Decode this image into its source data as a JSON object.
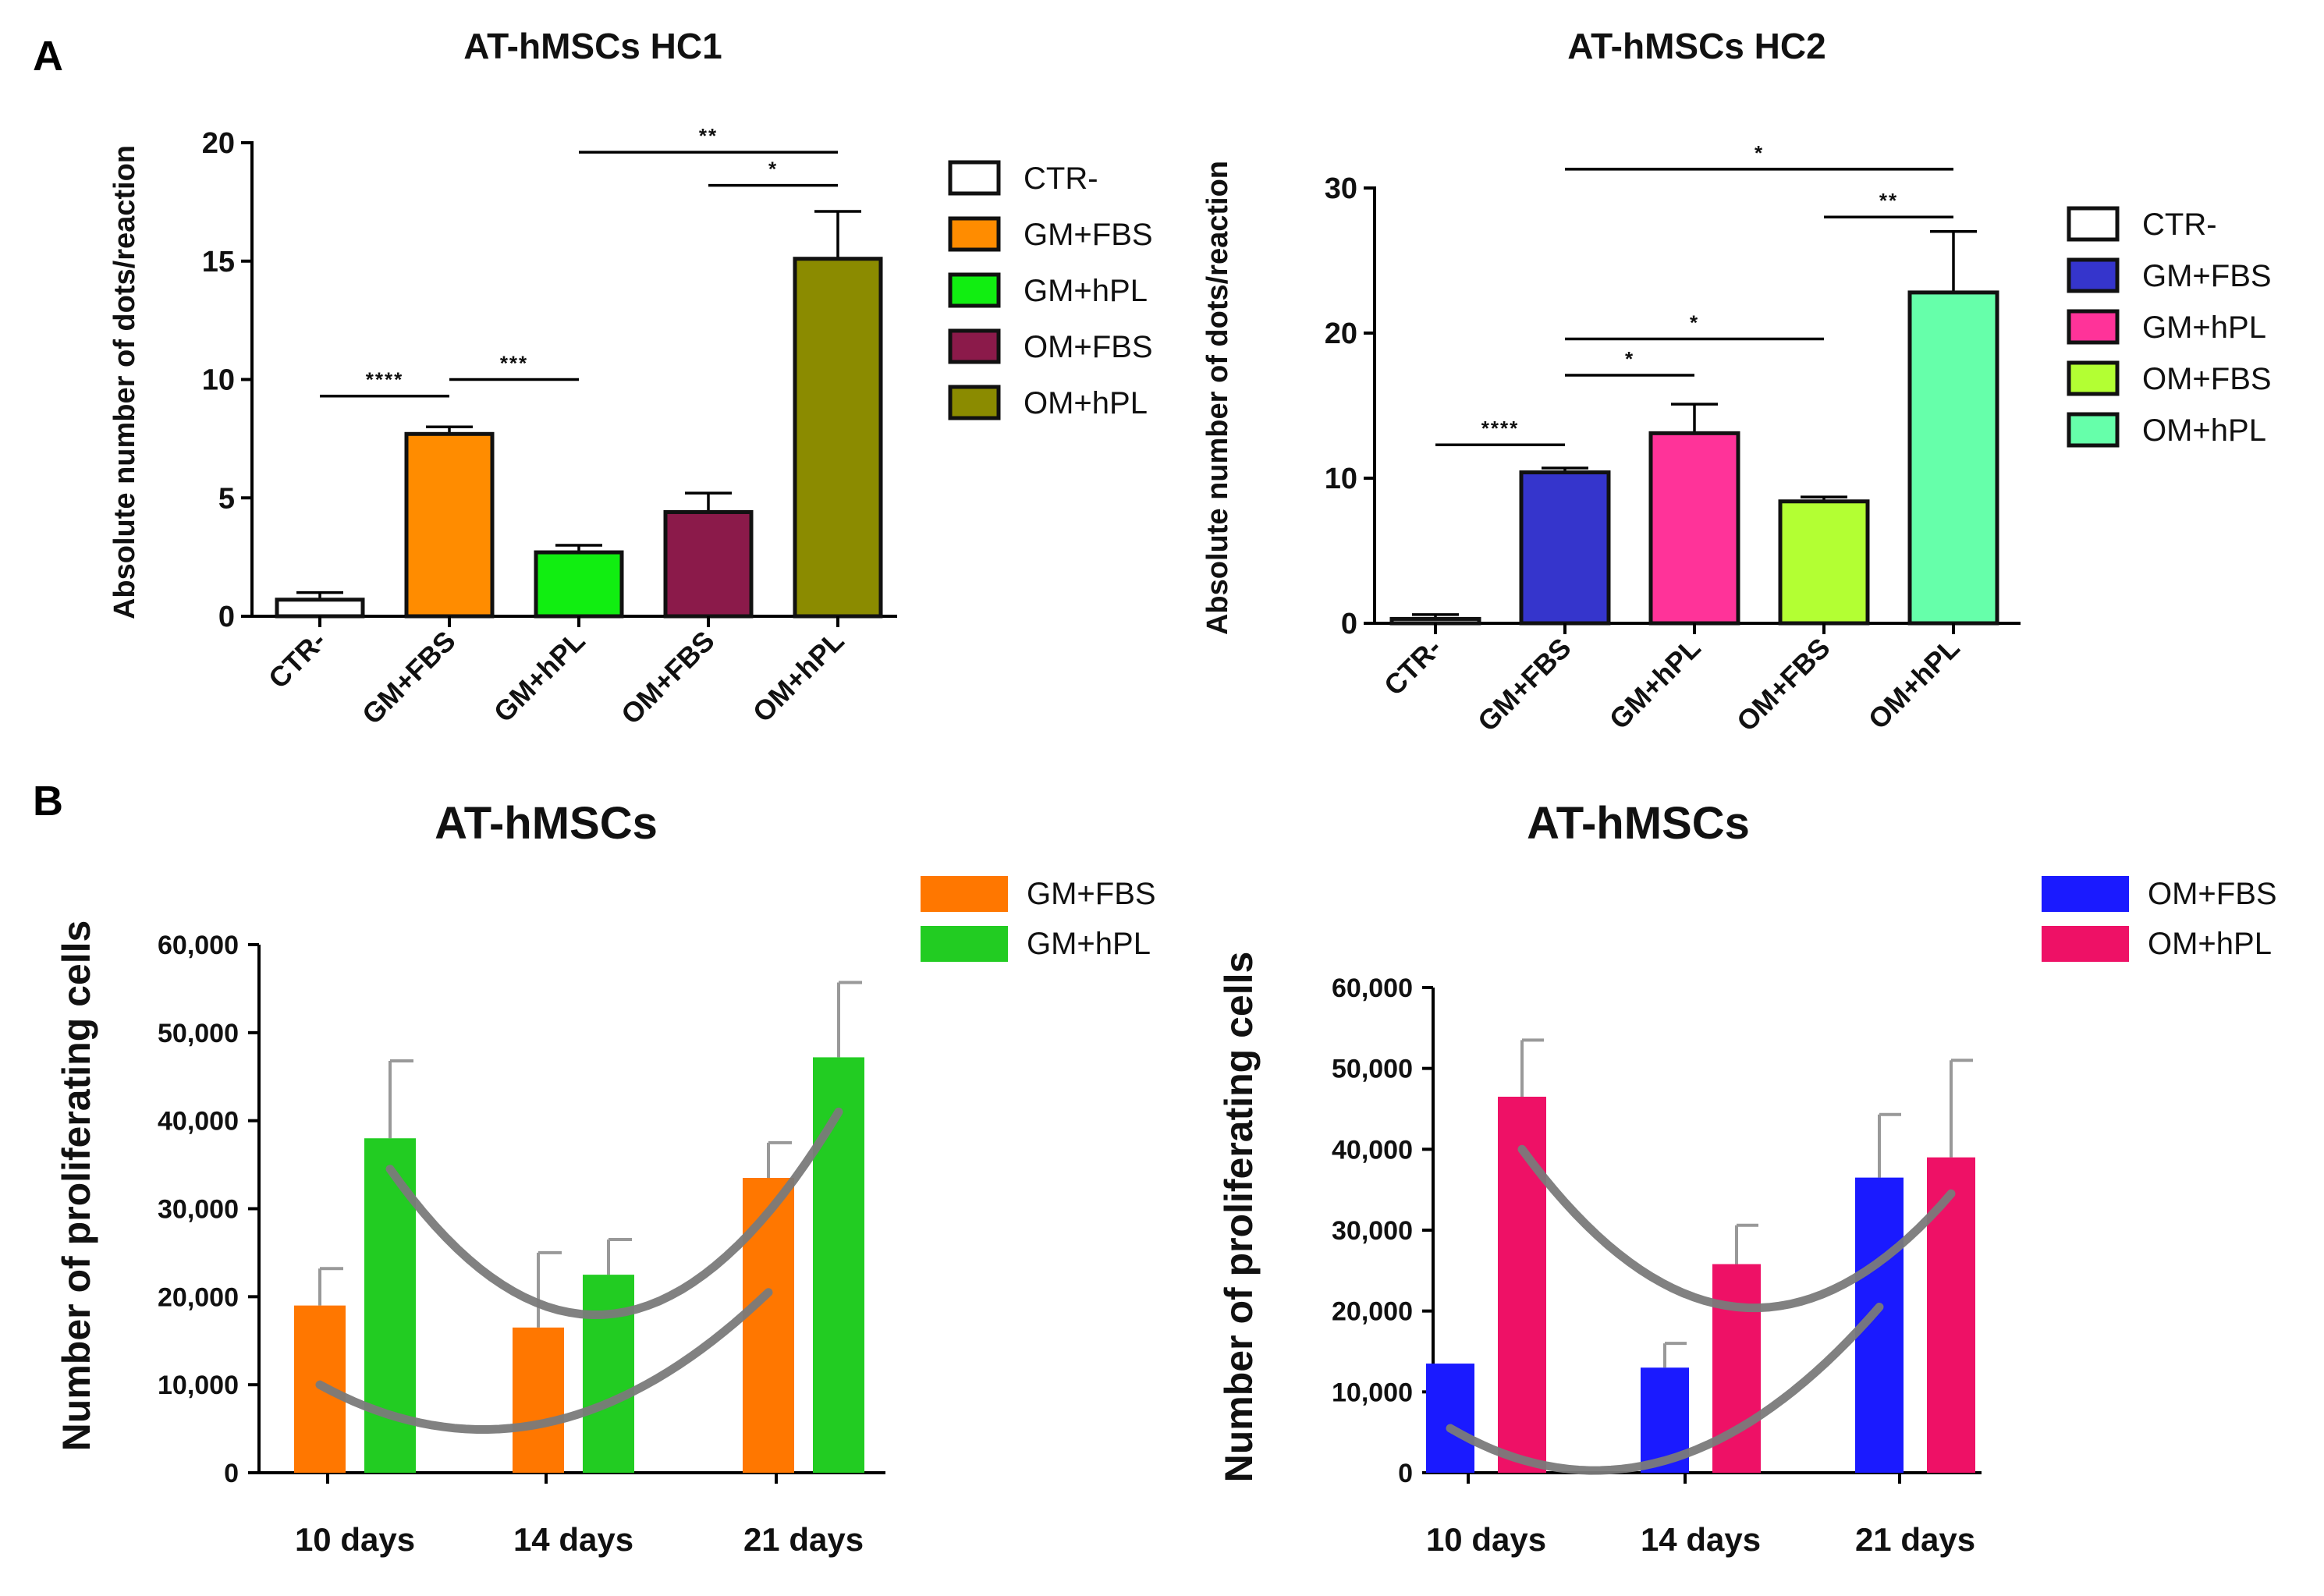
{
  "panels": {
    "a": "A",
    "b": "B"
  },
  "chart_data": [
    {
      "type": "bar",
      "title": "AT-hMSCs HC1",
      "xlabel": "",
      "ylabel": "Absolute number of dots/reaction",
      "ylim": [
        0,
        20
      ],
      "yticks": [
        "0",
        "5",
        "10",
        "15",
        "20"
      ],
      "categories": [
        "CTR-",
        "GM+FBS",
        "GM+hPL",
        "OM+FBS",
        "OM+hPL"
      ],
      "values": [
        0.7,
        7.7,
        2.7,
        4.4,
        15.1
      ],
      "errors": [
        0.3,
        0.3,
        0.3,
        0.8,
        2.0
      ],
      "colors": [
        "#ffffff",
        "#ff8c00",
        "#11ee11",
        "#8b1a4a",
        "#8b8b00"
      ],
      "legend": [
        "CTR-",
        "GM+FBS",
        "GM+hPL",
        "OM+FBS",
        "OM+hPL"
      ],
      "significance": [
        {
          "from": 0,
          "to": 1,
          "y": 9.3,
          "label": "****"
        },
        {
          "from": 1,
          "to": 2,
          "y": 10.0,
          "label": "***"
        },
        {
          "from": 2,
          "to": 4,
          "y": 19.6,
          "label": "**"
        },
        {
          "from": 3,
          "to": 4,
          "y": 18.2,
          "label": "*"
        }
      ]
    },
    {
      "type": "bar",
      "title": "AT-hMSCs HC2",
      "xlabel": "",
      "ylabel": "Absolute number of dots/reaction",
      "ylim": [
        0,
        30
      ],
      "yticks": [
        "0",
        "10",
        "20",
        "30"
      ],
      "categories": [
        "CTR-",
        "GM+FBS",
        "GM+hPL",
        "OM+FBS",
        "OM+hPL"
      ],
      "values": [
        0.3,
        10.4,
        13.1,
        8.4,
        22.8
      ],
      "errors": [
        0.3,
        0.3,
        2.0,
        0.3,
        4.2
      ],
      "colors": [
        "#ffffff",
        "#3535cc",
        "#ff3399",
        "#b3ff33",
        "#66ffaa"
      ],
      "legend": [
        "CTR-",
        "GM+FBS",
        "GM+hPL",
        "OM+FBS",
        "OM+hPL"
      ],
      "significance": [
        {
          "from": 0,
          "to": 1,
          "y": 12.3,
          "label": "****"
        },
        {
          "from": 1,
          "to": 2,
          "y": 17.1,
          "label": "*"
        },
        {
          "from": 1,
          "to": 3,
          "y": 19.6,
          "label": "*"
        },
        {
          "from": 3,
          "to": 4,
          "y": 28.0,
          "label": "**"
        },
        {
          "from": 1,
          "to": 4,
          "y": 31.3,
          "label": "*"
        }
      ]
    },
    {
      "type": "bar",
      "title": "AT-hMSCs",
      "xlabel": "",
      "ylabel": "Number of proliferating cells",
      "ylim": [
        0,
        60000
      ],
      "yticks": [
        "0",
        "10,000",
        "20,000",
        "30,000",
        "40,000",
        "50,000",
        "60,000"
      ],
      "categories": [
        "10 days",
        "14 days",
        "21 days"
      ],
      "series": [
        {
          "name": "GM+FBS",
          "color": "#ff7700",
          "values": [
            19000,
            16500,
            33500
          ],
          "errors": [
            4200,
            8500,
            4000
          ]
        },
        {
          "name": "GM+hPL",
          "color": "#22cc22",
          "values": [
            38000,
            22500,
            47200
          ],
          "errors": [
            8800,
            4000,
            8500
          ]
        }
      ],
      "trend_lines": [
        {
          "series": "GM+FBS",
          "values": [
            10000,
            5500,
            20500
          ]
        },
        {
          "series": "GM+hPL",
          "values": [
            34500,
            18000,
            41000
          ]
        }
      ]
    },
    {
      "type": "bar",
      "title": "AT-hMSCs",
      "xlabel": "",
      "ylabel": "Number of proliferating cells",
      "ylim": [
        0,
        60000
      ],
      "yticks": [
        "0",
        "10,000",
        "20,000",
        "30,000",
        "40,000",
        "50,000",
        "60,000"
      ],
      "categories": [
        "10 days",
        "14 days",
        "21 days"
      ],
      "series": [
        {
          "name": "OM+FBS",
          "color": "#1a1aff",
          "values": [
            13500,
            13000,
            36500
          ],
          "errors": [
            0,
            3000,
            7800
          ]
        },
        {
          "name": "OM+hPL",
          "color": "#ee1166",
          "values": [
            46500,
            25800,
            39000
          ],
          "errors": [
            7000,
            4800,
            12000
          ]
        }
      ],
      "trend_lines": [
        {
          "series": "OM+FBS",
          "values": [
            5500,
            1500,
            20500
          ]
        },
        {
          "series": "OM+hPL",
          "values": [
            40000,
            20500,
            34500
          ]
        }
      ]
    }
  ]
}
